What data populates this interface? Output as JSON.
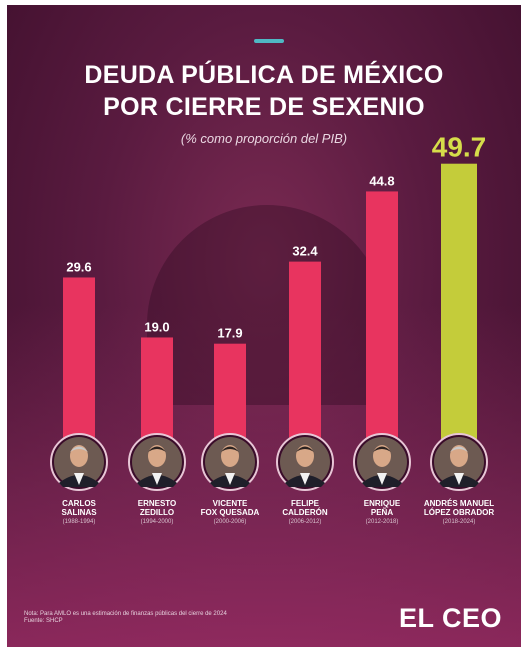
{
  "header": {
    "title_line1": "DEUDA PÚBLICA DE MÉXICO",
    "title_line2": "POR CIERRE DE SEXENIO",
    "subtitle": "(% como proporción del PIB)"
  },
  "chart_data": {
    "type": "bar",
    "title": "DEUDA PÚBLICA DE MÉXICO POR CIERRE DE SEXENIO",
    "subtitle": "(% como proporción del PIB)",
    "categories": [
      "CARLOS SALINAS",
      "ERNESTO ZEDILLO",
      "VICENTE FOX QUESADA",
      "FELIPE CALDERÓN",
      "ENRIQUE PEÑA",
      "ANDRÉS MANUEL LÓPEZ OBRADOR"
    ],
    "values": [
      29.6,
      19.0,
      17.9,
      32.4,
      44.8,
      49.7
    ],
    "value_labels": [
      "29.6",
      "19.0",
      "17.9",
      "32.4",
      "44.8",
      "49.7"
    ],
    "ylim": [
      0,
      50
    ],
    "grid": false,
    "colors": {
      "default_bar": "#e8345f",
      "highlight_bar": "#c4cc3a",
      "highlight_label": "#d6dd4a"
    },
    "highlight_index": 5
  },
  "presidents": [
    {
      "name_line1": "CARLOS",
      "name_line2": "SALINAS",
      "years": "(1988-1994)"
    },
    {
      "name_line1": "ERNESTO",
      "name_line2": "ZEDILLO",
      "years": "(1994-2000)"
    },
    {
      "name_line1": "VICENTE",
      "name_line2": "FOX QUESADA",
      "years": "(2000-2006)"
    },
    {
      "name_line1": "FELIPE",
      "name_line2": "CALDERÓN",
      "years": "(2006-2012)"
    },
    {
      "name_line1": "ENRIQUE",
      "name_line2": "PEÑA",
      "years": "(2012-2018)"
    },
    {
      "name_line1": "ANDRÉS MANUEL",
      "name_line2": "LÓPEZ OBRADOR",
      "years": "(2018-2024)"
    }
  ],
  "footer": {
    "note": "Nota: Para AMLO es una estimación de finanzas públicas del cierre de 2024",
    "source": "Fuente: SHCP",
    "logo": "EL CEO"
  }
}
